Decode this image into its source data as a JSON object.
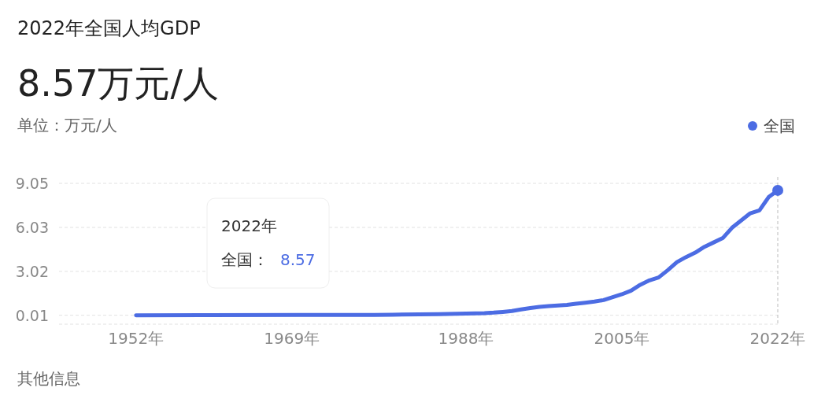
{
  "chart_data": {
    "type": "line",
    "title": "2022年全国人均GDP",
    "subtitle": "8.57万元/人",
    "ylabel": "单位：万元/人",
    "series": [
      {
        "name": "全国",
        "color": "#4c6ce3",
        "x": [
          1952,
          1960,
          1970,
          1978,
          1980,
          1985,
          1990,
          1991,
          1992,
          1993,
          1994,
          1995,
          1996,
          1997,
          1998,
          1999,
          2000,
          2001,
          2002,
          2003,
          2004,
          2005,
          2006,
          2007,
          2008,
          2009,
          2010,
          2011,
          2012,
          2013,
          2014,
          2015,
          2016,
          2017,
          2018,
          2019,
          2020,
          2021,
          2022
        ],
        "values": [
          0.01,
          0.02,
          0.03,
          0.04,
          0.05,
          0.09,
          0.16,
          0.19,
          0.24,
          0.3,
          0.41,
          0.51,
          0.59,
          0.64,
          0.68,
          0.72,
          0.8,
          0.87,
          0.95,
          1.05,
          1.25,
          1.45,
          1.7,
          2.1,
          2.4,
          2.6,
          3.1,
          3.65,
          4.0,
          4.3,
          4.7,
          5.0,
          5.3,
          6.0,
          6.5,
          7.0,
          7.2,
          8.1,
          8.57
        ]
      }
    ],
    "xlim": [
      1943.6,
      2022
    ],
    "ylim": [
      -0.6,
      9.05
    ],
    "xticks": [
      {
        "value": 1952,
        "label": "1952年"
      },
      {
        "value": 1969,
        "label": "1969年"
      },
      {
        "value": 1988,
        "label": "1988年"
      },
      {
        "value": 2005,
        "label": "2005年"
      },
      {
        "value": 2022,
        "label": "2022年"
      }
    ],
    "yticks": [
      0.01,
      3.02,
      6.03,
      9.05
    ],
    "grid": "y",
    "legend": "top right",
    "marker": "none",
    "line_style": "solid",
    "ref_lines": [
      {
        "axis": "x",
        "value": 2022,
        "color": "#bbbbbb",
        "line_style": "dashed"
      }
    ],
    "annotations": [
      "2022年",
      "全国：",
      "8.57",
      "其他信息"
    ]
  }
}
